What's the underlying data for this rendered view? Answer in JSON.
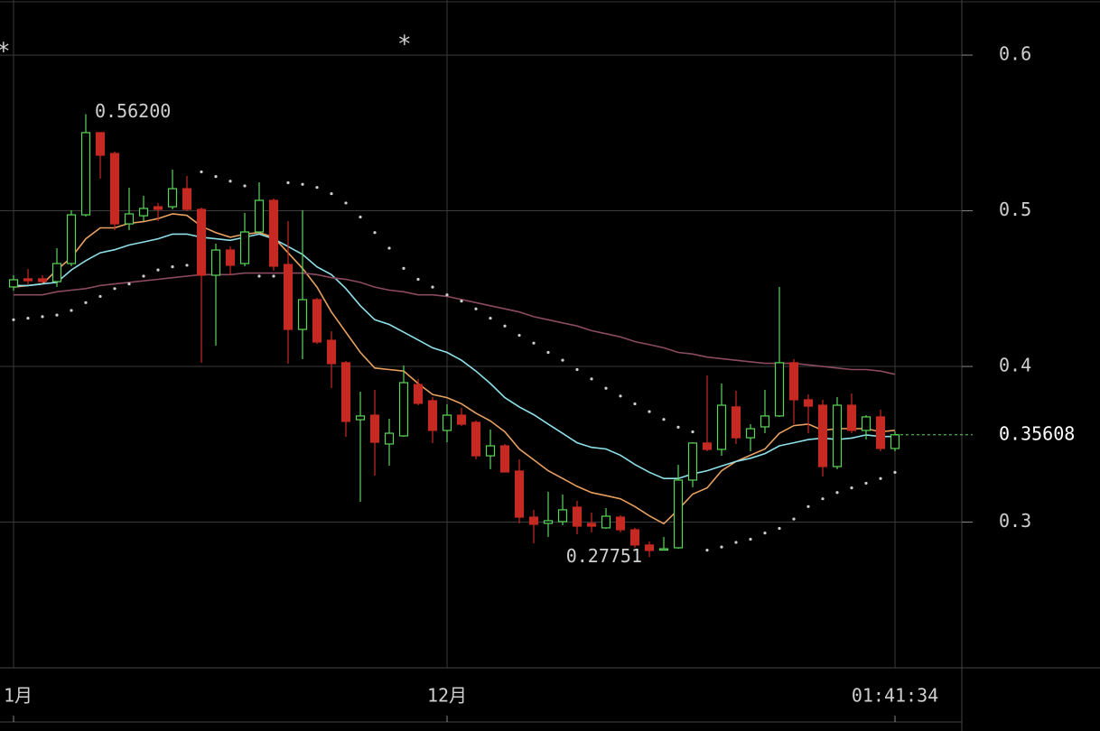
{
  "chart_data": {
    "type": "candlestick",
    "categories": [
      "1月",
      null,
      null,
      null,
      null,
      null,
      null,
      null,
      null,
      null,
      null,
      null,
      null,
      null,
      null,
      null,
      null,
      null,
      null,
      null,
      null,
      null,
      null,
      null,
      null,
      null,
      null,
      null,
      null,
      null,
      "12月",
      null,
      null,
      null,
      null,
      null,
      null,
      null,
      null,
      null,
      null,
      null,
      null,
      null,
      null,
      null,
      null,
      null,
      null,
      null,
      null,
      null,
      null,
      null,
      null,
      null,
      null,
      null,
      null,
      null,
      null,
      "01:41:34"
    ],
    "open": [
      0.4511,
      0.4563,
      0.4563,
      0.4545,
      0.4661,
      0.4974,
      0.5502,
      0.5368,
      0.4916,
      0.4968,
      0.5026,
      0.5026,
      0.5142,
      0.5009,
      0.4586,
      0.4748,
      0.4661,
      0.4864,
      0.5067,
      0.4655,
      0.4238,
      0.4429,
      0.4168,
      0.4024,
      0.3658,
      0.3687,
      0.3502,
      0.3554,
      0.3884,
      0.378,
      0.3589,
      0.3687,
      0.3641,
      0.3426,
      0.349,
      0.3328,
      0.3032,
      0.2992,
      0.3003,
      0.3096,
      0.2992,
      0.2963,
      0.3032,
      0.2951,
      0.2853,
      0.2824,
      0.2835,
      0.327,
      0.3508,
      0.3467,
      0.374,
      0.3542,
      0.3612,
      0.3682,
      0.4024,
      0.3786,
      0.3751,
      0.3357,
      0.3751,
      0.3589,
      0.3676,
      0.3473
    ],
    "high": [
      0.4586,
      0.4626,
      0.4586,
      0.476,
      0.5003,
      0.562,
      0.5502,
      0.538,
      0.5148,
      0.5096,
      0.505,
      0.5264,
      0.5224,
      0.5021,
      0.4789,
      0.4771,
      0.4986,
      0.5183,
      0.5079,
      0.4934,
      0.5003,
      0.4441,
      0.4226,
      0.4035,
      0.3838,
      0.385,
      0.3664,
      0.4006,
      0.3919,
      0.3803,
      0.3757,
      0.3734,
      0.3653,
      0.3595,
      0.3502,
      0.3403,
      0.3079,
      0.3195,
      0.3177,
      0.3137,
      0.3061,
      0.309,
      0.3044,
      0.2963,
      0.2876,
      0.2905,
      0.3368,
      0.3513,
      0.3942,
      0.389,
      0.3844,
      0.3629,
      0.385,
      0.4511,
      0.4047,
      0.3821,
      0.3786,
      0.3803,
      0.3826,
      0.3687,
      0.3722,
      0.3583
    ],
    "low": [
      0.4487,
      0.4528,
      0.4534,
      0.4511,
      0.4644,
      0.4963,
      0.5206,
      0.4876,
      0.4876,
      0.4934,
      0.4934,
      0.5009,
      0.4997,
      0.4024,
      0.4134,
      0.4586,
      0.4644,
      0.4858,
      0.4615,
      0.4018,
      0.4047,
      0.4145,
      0.3861,
      0.3548,
      0.3131,
      0.3299,
      0.3363,
      0.3548,
      0.3751,
      0.3508,
      0.3513,
      0.3618,
      0.3403,
      0.334,
      0.3322,
      0.2992,
      0.2864,
      0.2905,
      0.298,
      0.2922,
      0.2934,
      0.2957,
      0.2934,
      0.2835,
      0.27751,
      0.2818,
      0.2829,
      0.3224,
      0.3455,
      0.3426,
      0.3502,
      0.3455,
      0.3571,
      0.3676,
      0.3629,
      0.3571,
      0.3293,
      0.334,
      0.3571,
      0.3531,
      0.3455,
      0.3455
    ],
    "close": [
      0.4557,
      0.4551,
      0.4545,
      0.4661,
      0.4974,
      0.5502,
      0.5357,
      0.4916,
      0.498,
      0.5015,
      0.5009,
      0.5142,
      0.5009,
      0.4586,
      0.4748,
      0.465,
      0.4864,
      0.5067,
      0.4644,
      0.4238,
      0.4429,
      0.4157,
      0.4018,
      0.3647,
      0.3682,
      0.3513,
      0.3571,
      0.3896,
      0.3763,
      0.3589,
      0.3687,
      0.3629,
      0.3426,
      0.349,
      0.3322,
      0.3032,
      0.2986,
      0.3009,
      0.3079,
      0.2974,
      0.2974,
      0.3038,
      0.2951,
      0.2853,
      0.2818,
      0.2829,
      0.327,
      0.3508,
      0.3467,
      0.3751,
      0.3542,
      0.36,
      0.3682,
      0.4024,
      0.3786,
      0.3745,
      0.3357,
      0.3751,
      0.3589,
      0.3676,
      0.3473,
      0.35608
    ],
    "up_color": "#5cd65c",
    "down_color": "#c42a22",
    "overlays": [
      {
        "color": "#e8a060",
        "values": [
          0.451,
          0.452,
          0.453,
          0.462,
          0.47,
          0.482,
          0.489,
          0.489,
          0.492,
          0.493,
          0.495,
          0.498,
          0.497,
          0.49,
          0.486,
          0.483,
          0.485,
          0.486,
          0.483,
          0.473,
          0.463,
          0.451,
          0.435,
          0.422,
          0.409,
          0.399,
          0.398,
          0.397,
          0.389,
          0.382,
          0.38,
          0.376,
          0.37,
          0.365,
          0.358,
          0.347,
          0.34,
          0.333,
          0.328,
          0.323,
          0.319,
          0.317,
          0.315,
          0.31,
          0.304,
          0.299,
          0.308,
          0.318,
          0.322,
          0.333,
          0.339,
          0.343,
          0.347,
          0.357,
          0.362,
          0.363,
          0.359,
          0.36,
          0.36,
          0.36,
          0.358,
          0.359
        ]
      },
      {
        "color": "#8fe0ea",
        "values": [
          0.452,
          0.452,
          0.453,
          0.454,
          0.462,
          0.468,
          0.473,
          0.475,
          0.478,
          0.48,
          0.482,
          0.485,
          0.485,
          0.483,
          0.482,
          0.481,
          0.483,
          0.485,
          0.482,
          0.477,
          0.472,
          0.464,
          0.459,
          0.45,
          0.439,
          0.43,
          0.427,
          0.422,
          0.417,
          0.412,
          0.409,
          0.404,
          0.397,
          0.389,
          0.38,
          0.374,
          0.369,
          0.363,
          0.357,
          0.351,
          0.348,
          0.347,
          0.343,
          0.337,
          0.332,
          0.328,
          0.328,
          0.331,
          0.333,
          0.336,
          0.339,
          0.341,
          0.344,
          0.349,
          0.351,
          0.353,
          0.354,
          0.353,
          0.354,
          0.356,
          0.355,
          0.355
        ]
      },
      {
        "color": "#8a4a62",
        "values": [
          0.446,
          0.446,
          0.446,
          0.448,
          0.449,
          0.45,
          0.452,
          0.453,
          0.454,
          0.455,
          0.456,
          0.457,
          0.458,
          0.459,
          0.459,
          0.459,
          0.46,
          0.46,
          0.46,
          0.46,
          0.46,
          0.459,
          0.457,
          0.456,
          0.454,
          0.451,
          0.449,
          0.448,
          0.446,
          0.446,
          0.445,
          0.443,
          0.441,
          0.439,
          0.437,
          0.435,
          0.432,
          0.43,
          0.428,
          0.426,
          0.423,
          0.421,
          0.419,
          0.416,
          0.414,
          0.412,
          0.409,
          0.408,
          0.406,
          0.405,
          0.404,
          0.403,
          0.402,
          0.402,
          0.402,
          0.401,
          0.4,
          0.399,
          0.398,
          0.398,
          0.397,
          0.395
        ]
      }
    ],
    "sar": {
      "color": "#cfcfcf",
      "values": [
        0.43,
        0.431,
        0.432,
        0.433,
        0.436,
        0.441,
        0.445,
        0.45,
        0.453,
        0.458,
        0.462,
        0.464,
        0.465,
        0.525,
        0.522,
        0.519,
        0.516,
        0.458,
        0.458,
        0.518,
        0.517,
        0.515,
        0.511,
        0.505,
        0.496,
        0.486,
        0.476,
        0.463,
        0.456,
        0.451,
        0.446,
        0.442,
        0.437,
        0.431,
        0.426,
        0.42,
        0.415,
        0.409,
        0.404,
        0.398,
        0.392,
        0.386,
        0.381,
        0.376,
        0.371,
        0.366,
        0.361,
        0.358,
        0.282,
        0.284,
        0.287,
        0.289,
        0.293,
        0.296,
        0.302,
        0.31,
        0.315,
        0.319,
        0.322,
        0.325,
        0.328,
        0.332
      ]
    },
    "high_label": {
      "value": 0.562,
      "label": "0.56200"
    },
    "low_label": {
      "value": 0.27751,
      "label": "0.27751"
    },
    "last_price": {
      "value": 0.35608,
      "label": "0.35608"
    },
    "markers": [
      "*",
      "*"
    ],
    "ylim": [
      0.2064,
      0.6354
    ],
    "yticks": [
      0.3,
      0.4,
      0.5,
      0.6
    ],
    "grid": true
  }
}
